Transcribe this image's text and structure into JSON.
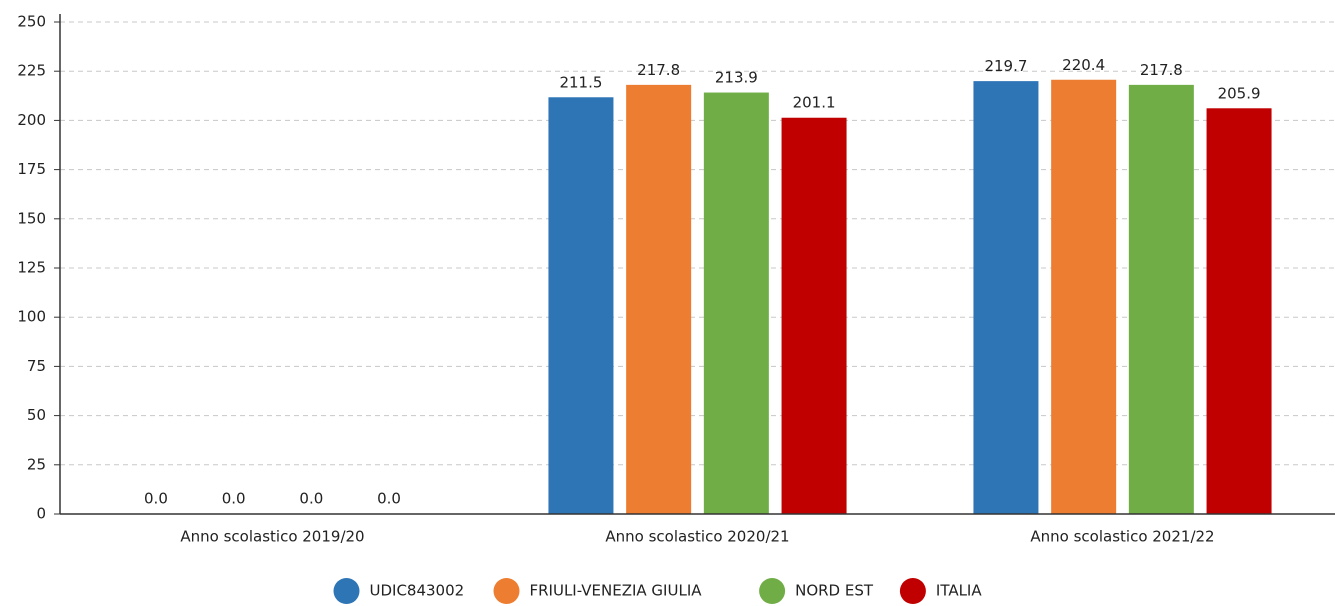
{
  "chart_data": {
    "type": "bar",
    "categories": [
      "Anno scolastico 2019/20",
      "Anno scolastico 2020/21",
      "Anno scolastico 2021/22"
    ],
    "series": [
      {
        "name": "UDIC843002",
        "color": "#2e75b6",
        "values": [
          0,
          211.5,
          219.7
        ],
        "value_labels": [
          "0.0",
          "211.5",
          "219.7"
        ]
      },
      {
        "name": "FRIULI-VENEZIA GIULIA",
        "color": "#ed7d31",
        "values": [
          0,
          217.8,
          220.4
        ],
        "value_labels": [
          "0.0",
          "217.8",
          "220.4"
        ]
      },
      {
        "name": "NORD EST",
        "color": "#70ad47",
        "values": [
          0,
          213.9,
          217.8
        ],
        "value_labels": [
          "0.0",
          "213.9",
          "217.8"
        ]
      },
      {
        "name": "ITALIA",
        "color": "#c00000",
        "values": [
          0,
          201.1,
          205.9
        ],
        "value_labels": [
          "0.0",
          "201.1",
          "205.9"
        ]
      }
    ],
    "ylim": [
      0,
      250
    ],
    "yticks": [
      0,
      25,
      50,
      75,
      100,
      125,
      150,
      175,
      200,
      225,
      250
    ],
    "grid": true,
    "legend": "bottom"
  }
}
